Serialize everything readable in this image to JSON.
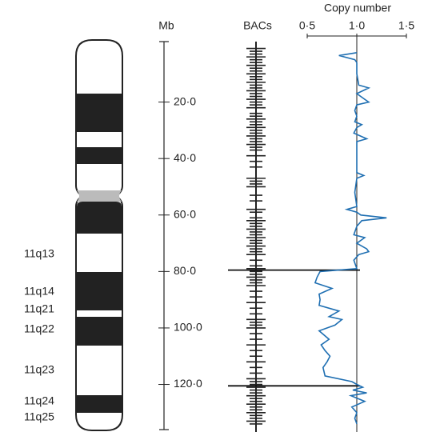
{
  "chart_data": {
    "type": "line",
    "y_label": "Mb",
    "bac_label": "BACs",
    "x_label": "Copy number",
    "ylim": [
      0,
      136
    ],
    "yticks": [
      {
        "value": 20,
        "label": "20·0"
      },
      {
        "value": 40,
        "label": "40·0"
      },
      {
        "value": 60,
        "label": "60·0"
      },
      {
        "value": 80,
        "label": "80·0"
      },
      {
        "value": 100,
        "label": "100·0"
      },
      {
        "value": 120,
        "label": "120·0"
      }
    ],
    "xlim": [
      0.5,
      1.5
    ],
    "xticks": [
      {
        "value": 0.5,
        "label": "0·5"
      },
      {
        "value": 1.0,
        "label": "1·0"
      },
      {
        "value": 1.5,
        "label": "1·5"
      }
    ],
    "bands": [
      "11q13",
      "11q14",
      "11q21",
      "11q22",
      "11q23",
      "11q24",
      "11q25"
    ],
    "bacs": [
      1,
      2,
      3,
      4,
      5,
      6,
      7,
      8,
      9,
      10,
      11,
      12,
      13,
      14,
      15,
      16,
      17,
      18,
      19,
      20,
      21,
      22,
      24,
      25,
      26,
      27,
      28,
      29,
      30,
      31,
      32,
      33,
      34,
      35,
      36,
      37,
      39,
      41,
      43,
      47,
      48,
      49,
      50,
      53,
      55,
      58,
      59,
      61,
      62,
      63,
      64,
      65,
      66,
      67,
      68,
      69,
      70,
      71,
      72,
      73,
      74,
      76,
      78,
      79,
      80,
      81,
      82,
      83,
      84,
      85,
      87,
      89,
      91,
      93,
      95,
      97,
      98,
      99,
      100,
      102,
      104,
      106,
      108,
      110,
      112,
      114,
      116,
      118,
      119,
      120,
      121,
      122,
      123,
      124,
      125,
      126,
      127,
      128,
      129,
      130,
      131,
      132,
      133,
      134
    ],
    "breakpoints": [
      79.5,
      120.5
    ],
    "series": [
      {
        "color": "#1f6fb2",
        "x": [
          2.5,
          3.5,
          5,
          6,
          10,
          14,
          15,
          17,
          19,
          20,
          21,
          23,
          25,
          27,
          28,
          29,
          31,
          33,
          34,
          40,
          45,
          46,
          47,
          52,
          57,
          58,
          59,
          60,
          61,
          62,
          64,
          67,
          68,
          70,
          72,
          73,
          74,
          76,
          79,
          80,
          82,
          84,
          86,
          88,
          90,
          92,
          94,
          96,
          97,
          99,
          101,
          104,
          106,
          108,
          110,
          112,
          114,
          117,
          119,
          120,
          121,
          122,
          123,
          124,
          126,
          128,
          130,
          132,
          134
        ],
        "values": [
          1.0,
          0.82,
          0.98,
          1.0,
          1.0,
          1.02,
          1.12,
          1.0,
          1.08,
          1.12,
          1.0,
          0.98,
          1.0,
          0.98,
          1.05,
          1.0,
          0.97,
          1.1,
          1.0,
          1.0,
          1.0,
          1.07,
          1.0,
          0.98,
          1.0,
          0.9,
          1.0,
          1.04,
          1.3,
          1.05,
          1.0,
          0.97,
          1.08,
          1.0,
          1.1,
          1.12,
          1.02,
          0.97,
          1.0,
          0.63,
          0.6,
          0.58,
          0.75,
          0.62,
          0.63,
          0.62,
          0.82,
          0.72,
          0.85,
          0.78,
          0.62,
          0.72,
          0.64,
          0.68,
          0.73,
          0.7,
          0.66,
          0.68,
          0.95,
          1.0,
          1.06,
          0.96,
          1.1,
          0.94,
          1.08,
          0.95,
          1.0,
          0.98,
          1.0
        ]
      }
    ]
  }
}
